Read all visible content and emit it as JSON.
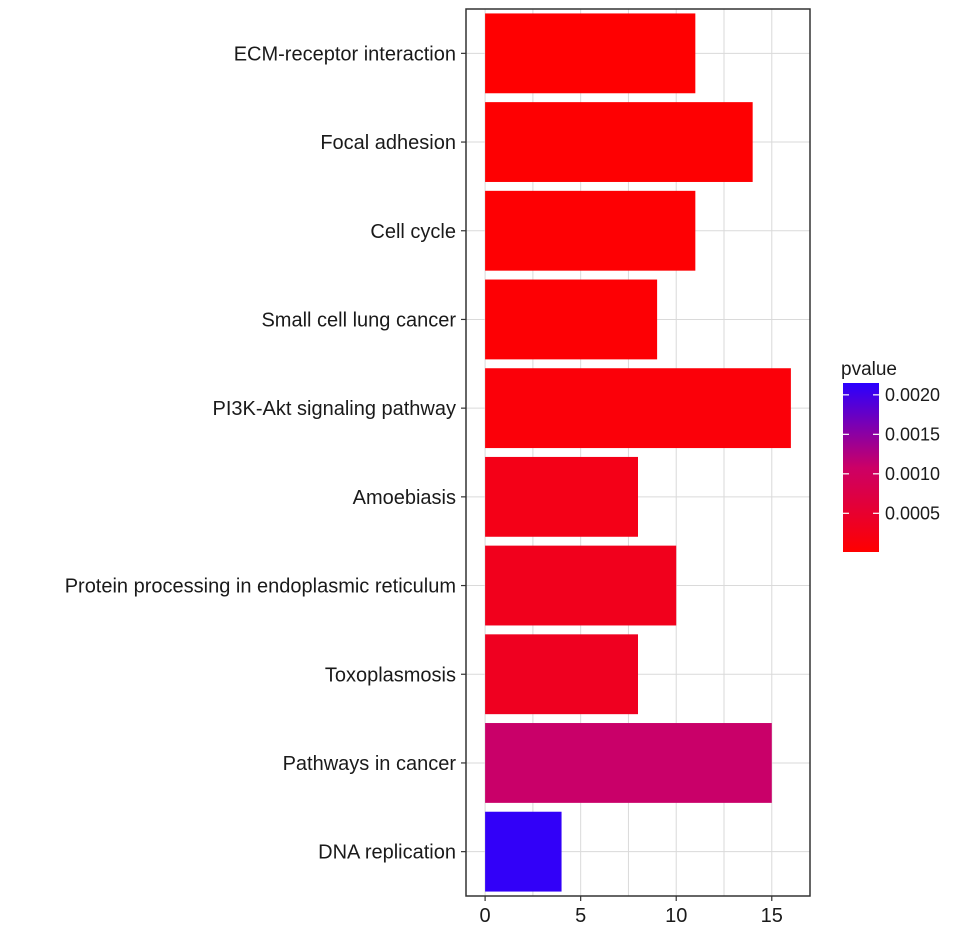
{
  "chart_data": {
    "type": "bar",
    "orientation": "horizontal",
    "categories": [
      "ECM-receptor interaction",
      "Focal adhesion",
      "Cell cycle",
      "Small cell lung cancer",
      "PI3K-Akt signaling pathway",
      "Amoebiasis",
      "Protein processing in endoplasmic reticulum",
      "Toxoplasmosis",
      "Pathways in cancer",
      "DNA replication"
    ],
    "values": [
      11,
      14,
      11,
      9,
      16,
      8,
      10,
      8,
      15,
      4
    ],
    "pvalues": [
      2e-05,
      3e-05,
      4e-05,
      5e-05,
      0.0001,
      0.00025,
      0.0003,
      0.00035,
      0.0011,
      0.0021
    ],
    "xlim": [
      -1,
      17
    ],
    "x_ticks": [
      "0",
      "5",
      "10",
      "15"
    ],
    "x_tick_values": [
      0,
      5,
      10,
      15
    ],
    "grid": true,
    "legend": {
      "title": "pvalue",
      "placement": "right",
      "ticks": [
        "0.0020",
        "0.0015",
        "0.0010",
        "0.0005"
      ],
      "tick_values": [
        0.002,
        0.0015,
        0.001,
        0.0005
      ],
      "range": [
        1e-05,
        0.00215
      ],
      "color_low": "#ff0000",
      "color_high": "#0000ff"
    }
  }
}
